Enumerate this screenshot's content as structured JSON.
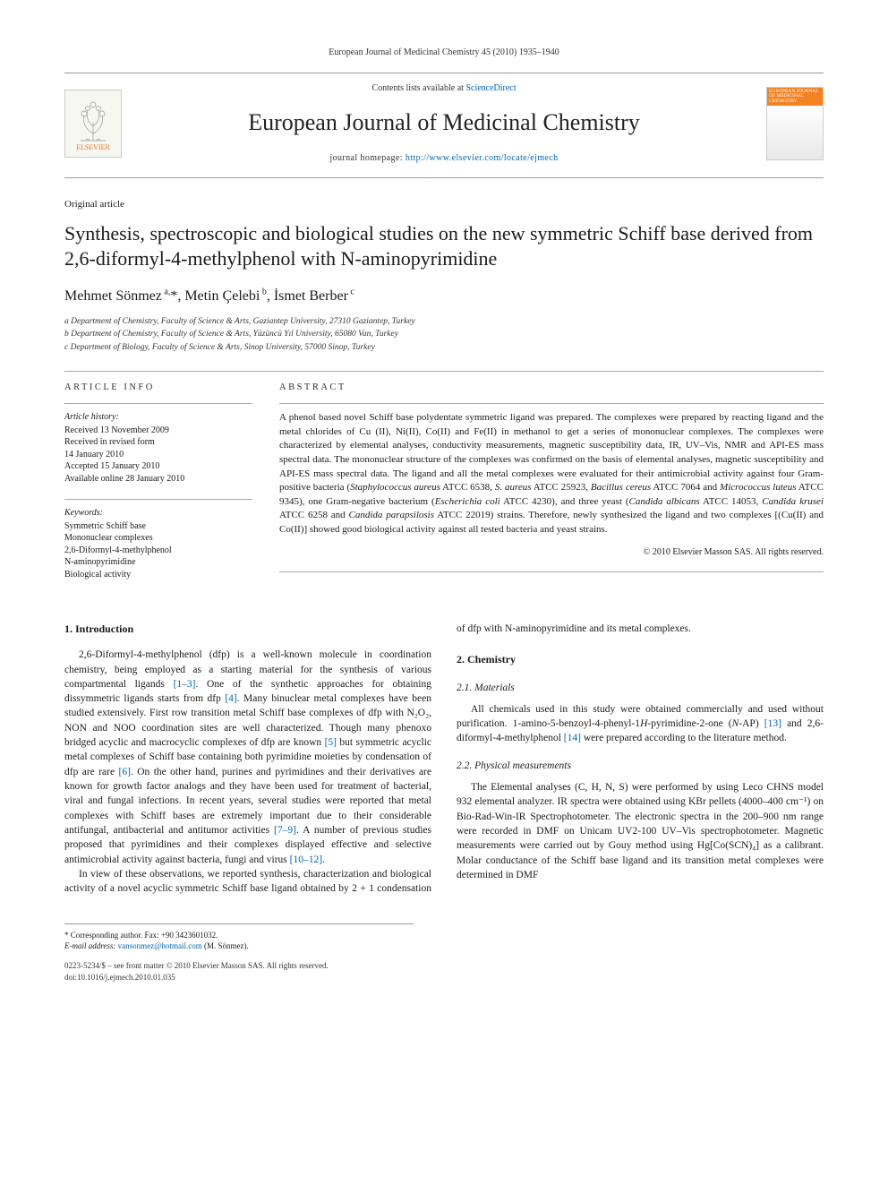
{
  "running_head": "European Journal of Medicinal Chemistry 45 (2010) 1935–1940",
  "masthead": {
    "publisher": "ELSEVIER",
    "contents_prefix": "Contents lists available at ",
    "contents_link": "ScienceDirect",
    "journal": "European Journal of Medicinal Chemistry",
    "homepage_prefix": "journal homepage: ",
    "homepage_url": "http://www.elsevier.com/locate/ejmech",
    "cover_caption": "EUROPEAN JOURNAL OF MEDICINAL CHEMISTRY"
  },
  "article_type": "Original article",
  "title": "Synthesis, spectroscopic and biological studies on the new symmetric Schiff base derived from 2,6-diformyl-4-methylphenol with N-aminopyrimidine",
  "authors_html": "Mehmet Sönmez<sup> a,</sup>*, Metin Çelebi<sup> b</sup>, İsmet Berber<sup> c</sup>",
  "affiliations": [
    "a Department of Chemistry, Faculty of Science & Arts, Gaziantep University, 27310 Gaziantep, Turkey",
    "b Department of Chemistry, Faculty of Science & Arts, Yüzüncü Yıl University, 65080 Van, Turkey",
    "c Department of Biology, Faculty of Science & Arts, Sinop University, 57000 Sinop, Turkey"
  ],
  "info": {
    "label": "ARTICLE INFO",
    "history_head": "Article history:",
    "history": [
      "Received 13 November 2009",
      "Received in revised form",
      "14 January 2010",
      "Accepted 15 January 2010",
      "Available online 28 January 2010"
    ],
    "keywords_head": "Keywords:",
    "keywords": [
      "Symmetric Schiff base",
      "Mononuclear complexes",
      "2,6-Diformyl-4-methylphenol",
      "N-aminopyrimidine",
      "Biological activity"
    ]
  },
  "abstract": {
    "label": "ABSTRACT",
    "text": "A phenol based novel Schiff base polydentate symmetric ligand was prepared. The complexes were prepared by reacting ligand and the metal chlorides of Cu (II), Ni(II), Co(II) and Fe(II) in methanol to get a series of mononuclear complexes. The complexes were characterized by elemental analyses, conductivity measurements, magnetic susceptibility data, IR, UV–Vis, NMR and API-ES mass spectral data. The mononuclear structure of the complexes was confirmed on the basis of elemental analyses, magnetic susceptibility and API-ES mass spectral data. The ligand and all the metal complexes were evaluated for their antimicrobial activity against four Gram-positive bacteria (Staphylococcus aureus ATCC 6538, S. aureus ATCC 25923, Bacillus cereus ATCC 7064 and Micrococcus luteus ATCC 9345), one Gram-negative bacterium (Escherichia coli ATCC 4230), and three yeast (Candida albicans ATCC 14053, Candida krusei ATCC 6258 and Candida parapsilosis ATCC 22019) strains. Therefore, newly synthesized the ligand and two complexes [(Cu(II) and Co(II)] showed good biological activity against all tested bacteria and yeast strains.",
    "copyright": "© 2010 Elsevier Masson SAS. All rights reserved."
  },
  "body": {
    "s1_head": "1. Introduction",
    "s1_p1": "2,6-Diformyl-4-methylphenol (dfp) is a well-known molecule in coordination chemistry, being employed as a starting material for the synthesis of various compartmental ligands [1–3]. One of the synthetic approaches for obtaining dissymmetric ligands starts from dfp [4]. Many binuclear metal complexes have been studied extensively. First row transition metal Schiff base complexes of dfp with N₂O₂, NON and NOO coordination sites are well characterized. Though many phenoxo bridged acyclic and macrocyclic complexes of dfp are known [5] but symmetric acyclic metal complexes of Schiff base containing both pyrimidine moieties by condensation of dfp are rare [6]. On the other hand, purines and pyrimidines and their derivatives are known for growth factor analogs and they have been used for treatment of bacterial, viral and fungal infections. In recent years, several studies were reported that metal complexes with Schiff bases are extremely important due to their considerable antifungal, antibacterial and antitumor activities [7–9]. A number of previous studies proposed that pyrimidines and their complexes displayed effective and selective antimicrobial activity against bacteria, fungi and virus [10–12].",
    "s1_p2": "In view of these observations, we reported synthesis, characterization and biological activity of a novel acyclic symmetric Schiff base ligand obtained by 2 + 1 condensation of dfp with N-aminopyrimidine and its metal complexes.",
    "s2_head": "2. Chemistry",
    "s21_head": "2.1. Materials",
    "s21_p": "All chemicals used in this study were obtained commercially and used without purification. 1-amino-5-benzoyl-4-phenyl-1H-pyrimidine-2-one (N-AP) [13] and 2,6-diformyl-4-methylphenol [14] were prepared according to the literature method.",
    "s22_head": "2.2. Physical measurements",
    "s22_p": "The Elemental analyses (C, H, N, S) were performed by using Leco CHNS model 932 elemental analyzer. IR spectra were obtained using KBr pellets (4000–400 cm⁻¹) on Bio-Rad-Win-IR Spectrophotometer. The electronic spectra in the 200–900 nm range were recorded in DMF on Unicam UV2-100 UV–Vis spectrophotometer. Magnetic measurements were carried out by Gouy method using Hg[Co(SCN)₄] as a calibrant. Molar conductance of the Schiff base ligand and its transition metal complexes were determined in DMF"
  },
  "corr": {
    "line1": "* Corresponding author. Fax: +90 3423601032.",
    "email_label": "E-mail address: ",
    "email": "vansonmez@hotmail.com",
    "email_suffix": " (M. Sönmez)."
  },
  "footer": {
    "line1": "0223-5234/$ – see front matter © 2010 Elsevier Masson SAS. All rights reserved.",
    "line2": "doi:10.1016/j.ejmech.2010.01.035"
  },
  "colors": {
    "link": "#0066b3",
    "elsevier_orange": "#e67817",
    "rule": "#aaaaaa"
  }
}
